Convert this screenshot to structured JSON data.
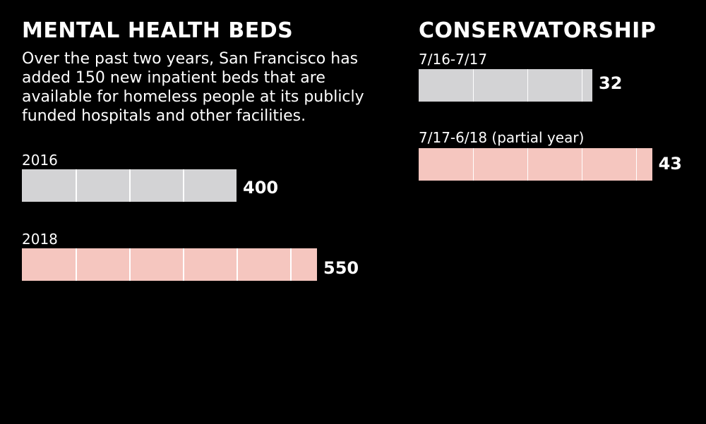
{
  "colors": {
    "background": "#000000",
    "bar_before": "#d3d3d5",
    "bar_after": "#f5c6bf",
    "text": "#ffffff"
  },
  "chart_data": [
    {
      "type": "bar",
      "orientation": "horizontal",
      "title": "MENTAL HEALTH BEDS",
      "subtitle": "Over the past two years, San Francisco has added 150 new inpatient beds that are available for homeless people at its publicly funded hospitals and other facilities.",
      "categories": [
        "2016",
        "2018"
      ],
      "values": [
        400,
        550
      ],
      "value_labels": [
        "400",
        "550"
      ],
      "unit_step": 100
    },
    {
      "type": "bar",
      "orientation": "horizontal",
      "title": "CONSERVATORSHIP",
      "categories": [
        "7/16-7/17",
        "7/17-6/18 (partial year)"
      ],
      "values": [
        32,
        43
      ],
      "value_labels": [
        "32",
        "43"
      ],
      "unit_step": 10
    }
  ]
}
